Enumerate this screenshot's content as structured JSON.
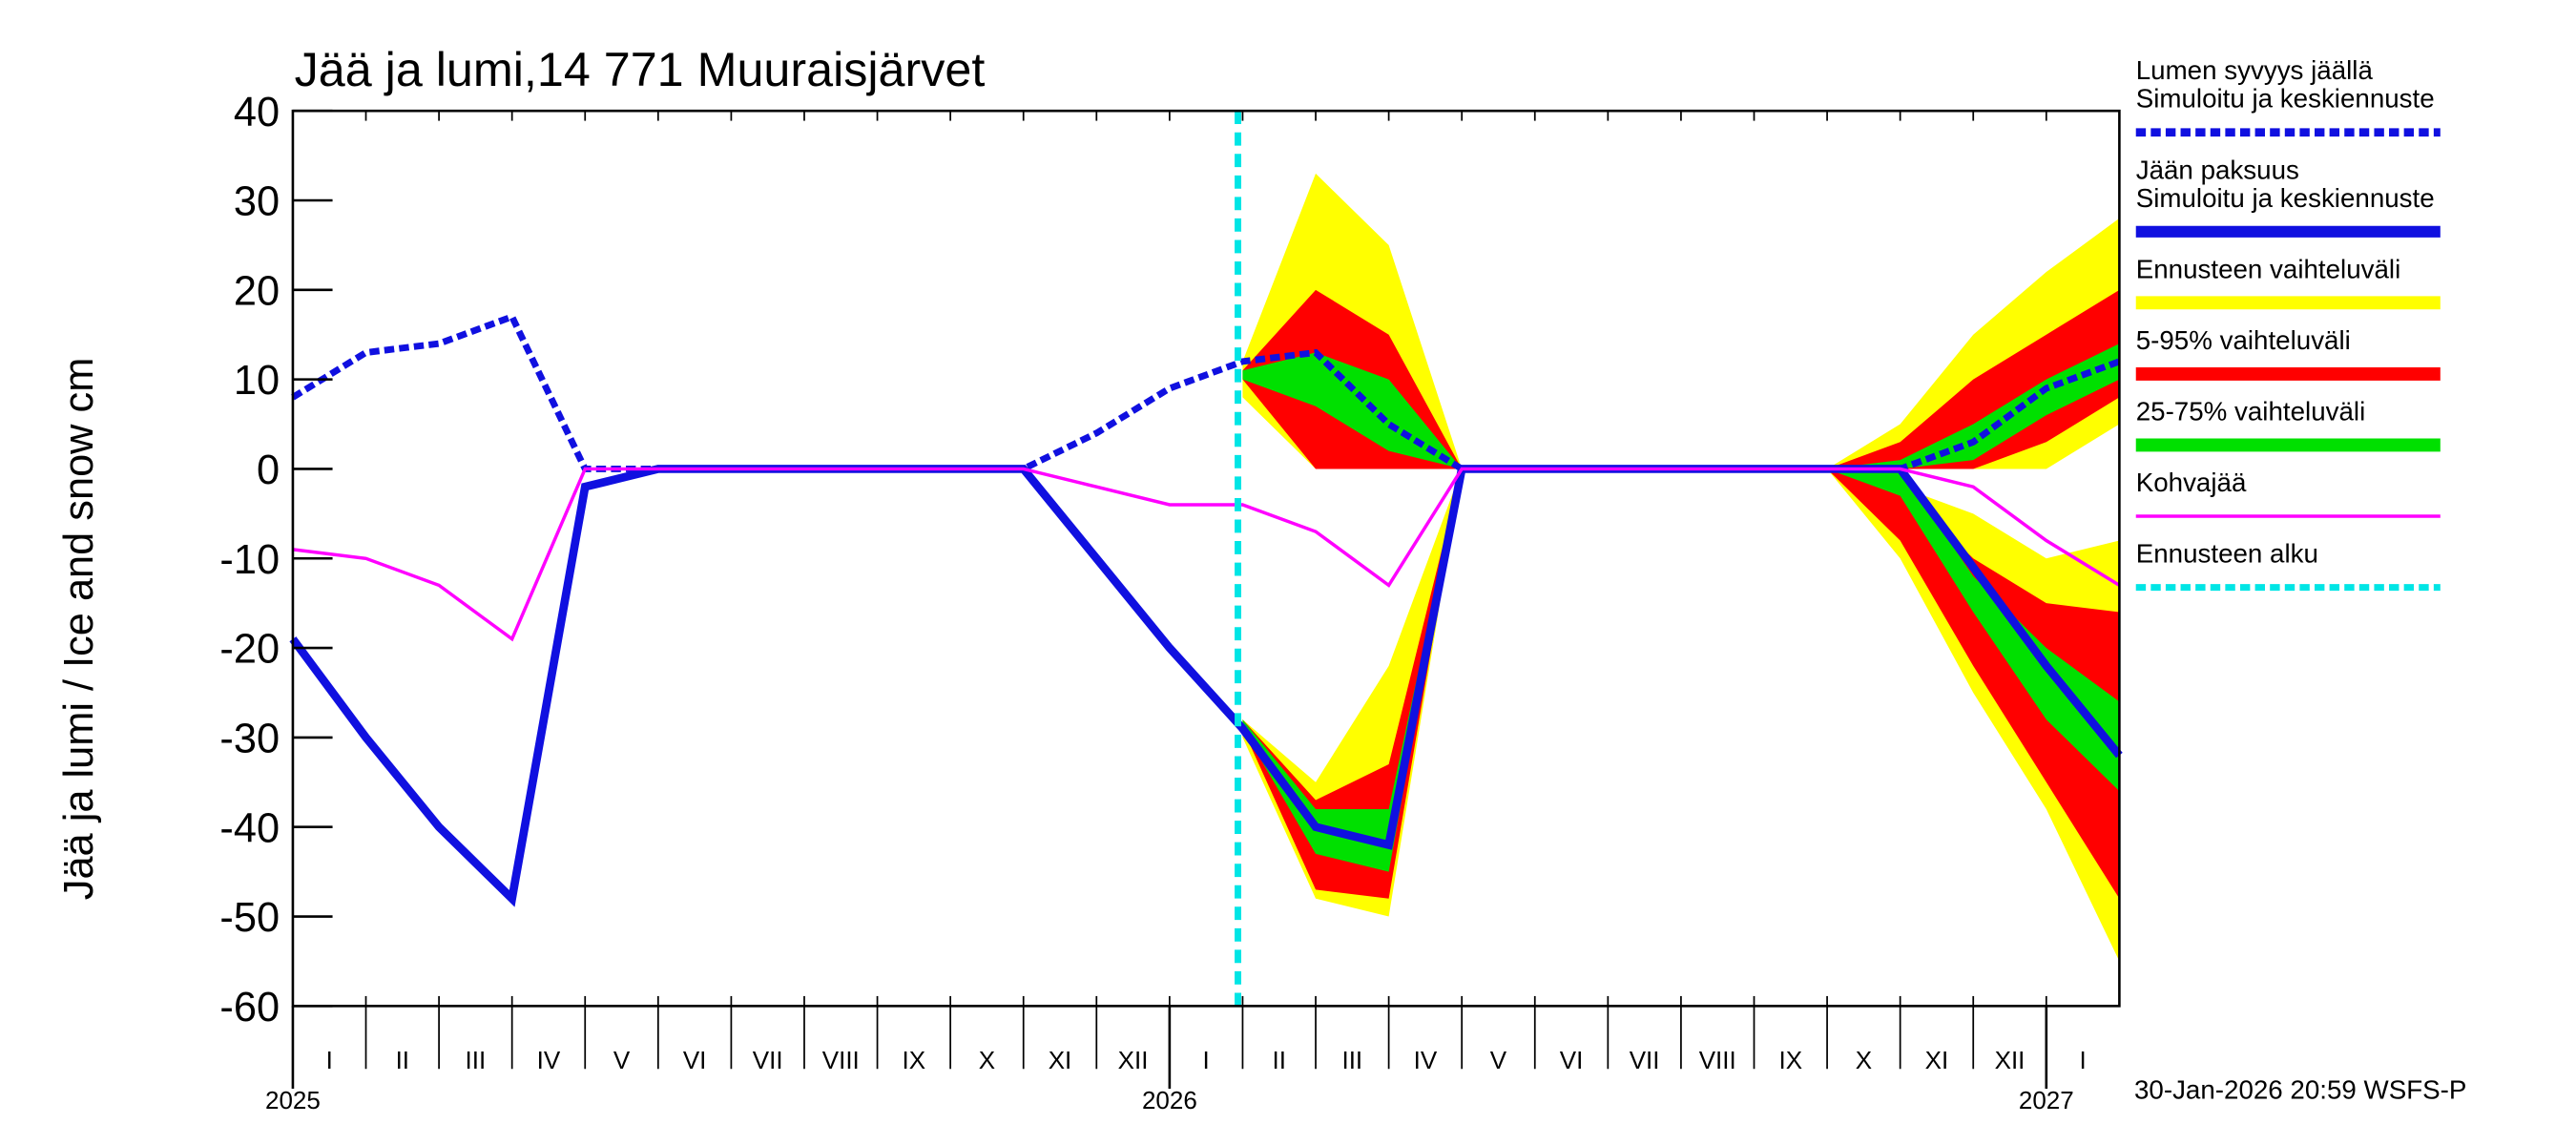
{
  "chart_data": {
    "type": "line",
    "title": "Jää ja lumi,14 771 Muuraisjärvet",
    "y_label": "Jää ja lumi / Ice and snow    cm",
    "footer": "30-Jan-2026 20:59 WSFS-P",
    "x": [
      "2025-01",
      "2025-02",
      "2025-03",
      "2025-04",
      "2025-05",
      "2025-06",
      "2025-07",
      "2025-08",
      "2025-09",
      "2025-10",
      "2025-11",
      "2025-12",
      "2026-01",
      "2026-02",
      "2026-03",
      "2026-04",
      "2026-05",
      "2026-06",
      "2026-07",
      "2026-08",
      "2026-09",
      "2026-10",
      "2026-11",
      "2026-12",
      "2027-01",
      "2027-02"
    ],
    "xlim": [
      "2025-01",
      "2027-02"
    ],
    "xticks": [
      {
        "value": "2025-01",
        "label": "I"
      },
      {
        "value": "2025-02",
        "label": "II"
      },
      {
        "value": "2025-03",
        "label": "III"
      },
      {
        "value": "2025-04",
        "label": "IV"
      },
      {
        "value": "2025-05",
        "label": "V"
      },
      {
        "value": "2025-06",
        "label": "VI"
      },
      {
        "value": "2025-07",
        "label": "VII"
      },
      {
        "value": "2025-08",
        "label": "VIII"
      },
      {
        "value": "2025-09",
        "label": "IX"
      },
      {
        "value": "2025-10",
        "label": "X"
      },
      {
        "value": "2025-11",
        "label": "XI"
      },
      {
        "value": "2025-12",
        "label": "XII"
      },
      {
        "value": "2026-01",
        "label": "I"
      },
      {
        "value": "2026-02",
        "label": "II"
      },
      {
        "value": "2026-03",
        "label": "III"
      },
      {
        "value": "2026-04",
        "label": "IV"
      },
      {
        "value": "2026-05",
        "label": "V"
      },
      {
        "value": "2026-06",
        "label": "VI"
      },
      {
        "value": "2026-07",
        "label": "VII"
      },
      {
        "value": "2026-08",
        "label": "VIII"
      },
      {
        "value": "2026-09",
        "label": "IX"
      },
      {
        "value": "2026-10",
        "label": "X"
      },
      {
        "value": "2026-11",
        "label": "XI"
      },
      {
        "value": "2026-12",
        "label": "XII"
      },
      {
        "value": "2027-01",
        "label": "I"
      }
    ],
    "year_ticks": [
      {
        "value": "2025-01",
        "label": "2025"
      },
      {
        "value": "2026-01",
        "label": "2026"
      },
      {
        "value": "2027-01",
        "label": "2027"
      }
    ],
    "ylim": [
      -60,
      40
    ],
    "yticks": [
      -60,
      -50,
      -40,
      -30,
      -20,
      -10,
      0,
      10,
      20,
      30,
      40
    ],
    "series": [
      {
        "name": [
          "Lumen syvyys jäällä",
          "Simuloitu ja keskiennuste"
        ],
        "color": "#1010e0",
        "dashed": true,
        "width": 4,
        "values": [
          8,
          13,
          14,
          17,
          0,
          0,
          0,
          0,
          0,
          0,
          0,
          4,
          9,
          12,
          13,
          5,
          0,
          0,
          0,
          0,
          0,
          0,
          0,
          3,
          9,
          12
        ]
      },
      {
        "name": [
          "Jään paksuus",
          "Simuloitu ja keskiennuste"
        ],
        "color": "#1010e0",
        "dashed": false,
        "width": 5,
        "values": [
          -19,
          -30,
          -40,
          -48,
          -2,
          0,
          0,
          0,
          0,
          0,
          0,
          -10,
          -20,
          -29,
          -40,
          -42,
          0,
          0,
          0,
          0,
          0,
          0,
          0,
          -11,
          -22,
          -32
        ]
      },
      {
        "name": [
          "Kohvajää"
        ],
        "color": "#ff00ff",
        "dashed": false,
        "width": 2,
        "values": [
          -9,
          -10,
          -13,
          -19,
          0,
          0,
          0,
          0,
          0,
          0,
          0,
          -2,
          -4,
          -4,
          -7,
          -13,
          0,
          0,
          0,
          0,
          0,
          0,
          0,
          -2,
          -8,
          -13
        ]
      }
    ],
    "bands": [
      {
        "name": "Ennusteen vaihteluväli",
        "color": "#ffff00",
        "ranges": [
          {
            "low": [
              null,
              null,
              null,
              null,
              null,
              null,
              null,
              null,
              null,
              null,
              null,
              null,
              null,
              8,
              0,
              0,
              0,
              0,
              0,
              0,
              0,
              0,
              0,
              0,
              0,
              5
            ],
            "high": [
              null,
              null,
              null,
              null,
              null,
              null,
              null,
              null,
              null,
              null,
              null,
              null,
              null,
              12,
              33,
              25,
              0,
              0,
              0,
              0,
              0,
              0,
              5,
              15,
              22,
              28
            ]
          },
          {
            "low": [
              null,
              null,
              null,
              null,
              null,
              null,
              null,
              null,
              null,
              null,
              null,
              null,
              null,
              -30,
              -48,
              -50,
              0,
              0,
              0,
              0,
              0,
              0,
              -10,
              -25,
              -38,
              -55
            ],
            "high": [
              null,
              null,
              null,
              null,
              null,
              null,
              null,
              null,
              null,
              null,
              null,
              null,
              null,
              -28,
              -35,
              -22,
              0,
              0,
              0,
              0,
              0,
              0,
              -2,
              -5,
              -10,
              -8
            ]
          }
        ]
      },
      {
        "name": "5-95% vaihteluväli",
        "color": "#ff0000",
        "ranges": [
          {
            "low": [
              null,
              null,
              null,
              null,
              null,
              null,
              null,
              null,
              null,
              null,
              null,
              null,
              null,
              10,
              0,
              0,
              0,
              0,
              0,
              0,
              0,
              0,
              0,
              0,
              3,
              8
            ],
            "high": [
              null,
              null,
              null,
              null,
              null,
              null,
              null,
              null,
              null,
              null,
              null,
              null,
              null,
              11,
              20,
              15,
              0,
              0,
              0,
              0,
              0,
              0,
              3,
              10,
              15,
              20
            ]
          },
          {
            "low": [
              null,
              null,
              null,
              null,
              null,
              null,
              null,
              null,
              null,
              null,
              null,
              null,
              null,
              -29,
              -47,
              -48,
              0,
              0,
              0,
              0,
              0,
              0,
              -8,
              -22,
              -35,
              -48
            ],
            "high": [
              null,
              null,
              null,
              null,
              null,
              null,
              null,
              null,
              null,
              null,
              null,
              null,
              null,
              -28,
              -37,
              -33,
              0,
              0,
              0,
              0,
              0,
              0,
              -2,
              -10,
              -15,
              -16
            ]
          }
        ]
      },
      {
        "name": "25-75% vaihteluväli",
        "color": "#00e000",
        "ranges": [
          {
            "low": [
              null,
              null,
              null,
              null,
              null,
              null,
              null,
              null,
              null,
              null,
              null,
              null,
              null,
              10,
              7,
              2,
              0,
              0,
              0,
              0,
              0,
              0,
              0,
              1,
              6,
              10
            ],
            "high": [
              null,
              null,
              null,
              null,
              null,
              null,
              null,
              null,
              null,
              null,
              null,
              null,
              null,
              11,
              13,
              10,
              0,
              0,
              0,
              0,
              0,
              0,
              1,
              5,
              10,
              14
            ]
          },
          {
            "low": [
              null,
              null,
              null,
              null,
              null,
              null,
              null,
              null,
              null,
              null,
              null,
              null,
              null,
              -29,
              -43,
              -45,
              0,
              0,
              0,
              0,
              0,
              0,
              -3,
              -16,
              -28,
              -36
            ],
            "high": [
              null,
              null,
              null,
              null,
              null,
              null,
              null,
              null,
              null,
              null,
              null,
              null,
              null,
              -28,
              -38,
              -38,
              0,
              0,
              0,
              0,
              0,
              0,
              0,
              -12,
              -20,
              -26
            ]
          }
        ]
      }
    ],
    "forecast_start": {
      "name": "Ennusteen alku",
      "x": "2026-01-30",
      "color": "#00e5e5"
    }
  }
}
